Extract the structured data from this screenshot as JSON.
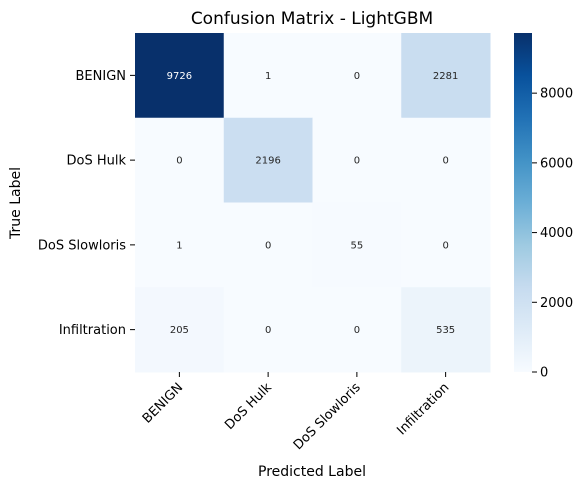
{
  "chart_data": {
    "type": "heatmap",
    "title": "Confusion Matrix - LightGBM",
    "xlabel": "Predicted Label",
    "ylabel": "True Label",
    "x_categories": [
      "BENIGN",
      "DoS Hulk",
      "DoS Slowloris",
      "Infiltration"
    ],
    "y_categories": [
      "BENIGN",
      "DoS Hulk",
      "DoS Slowloris",
      "Infiltration"
    ],
    "values": [
      [
        9726,
        1,
        0,
        2281
      ],
      [
        0,
        2196,
        0,
        0
      ],
      [
        1,
        0,
        55,
        0
      ],
      [
        205,
        0,
        0,
        535
      ]
    ],
    "colormap": "Blues",
    "colorbar": {
      "min": 0,
      "max": 9726,
      "ticks": [
        0,
        2000,
        4000,
        6000,
        8000
      ]
    },
    "text_color_light": "#ffffff",
    "text_color_dark": "#262626"
  }
}
